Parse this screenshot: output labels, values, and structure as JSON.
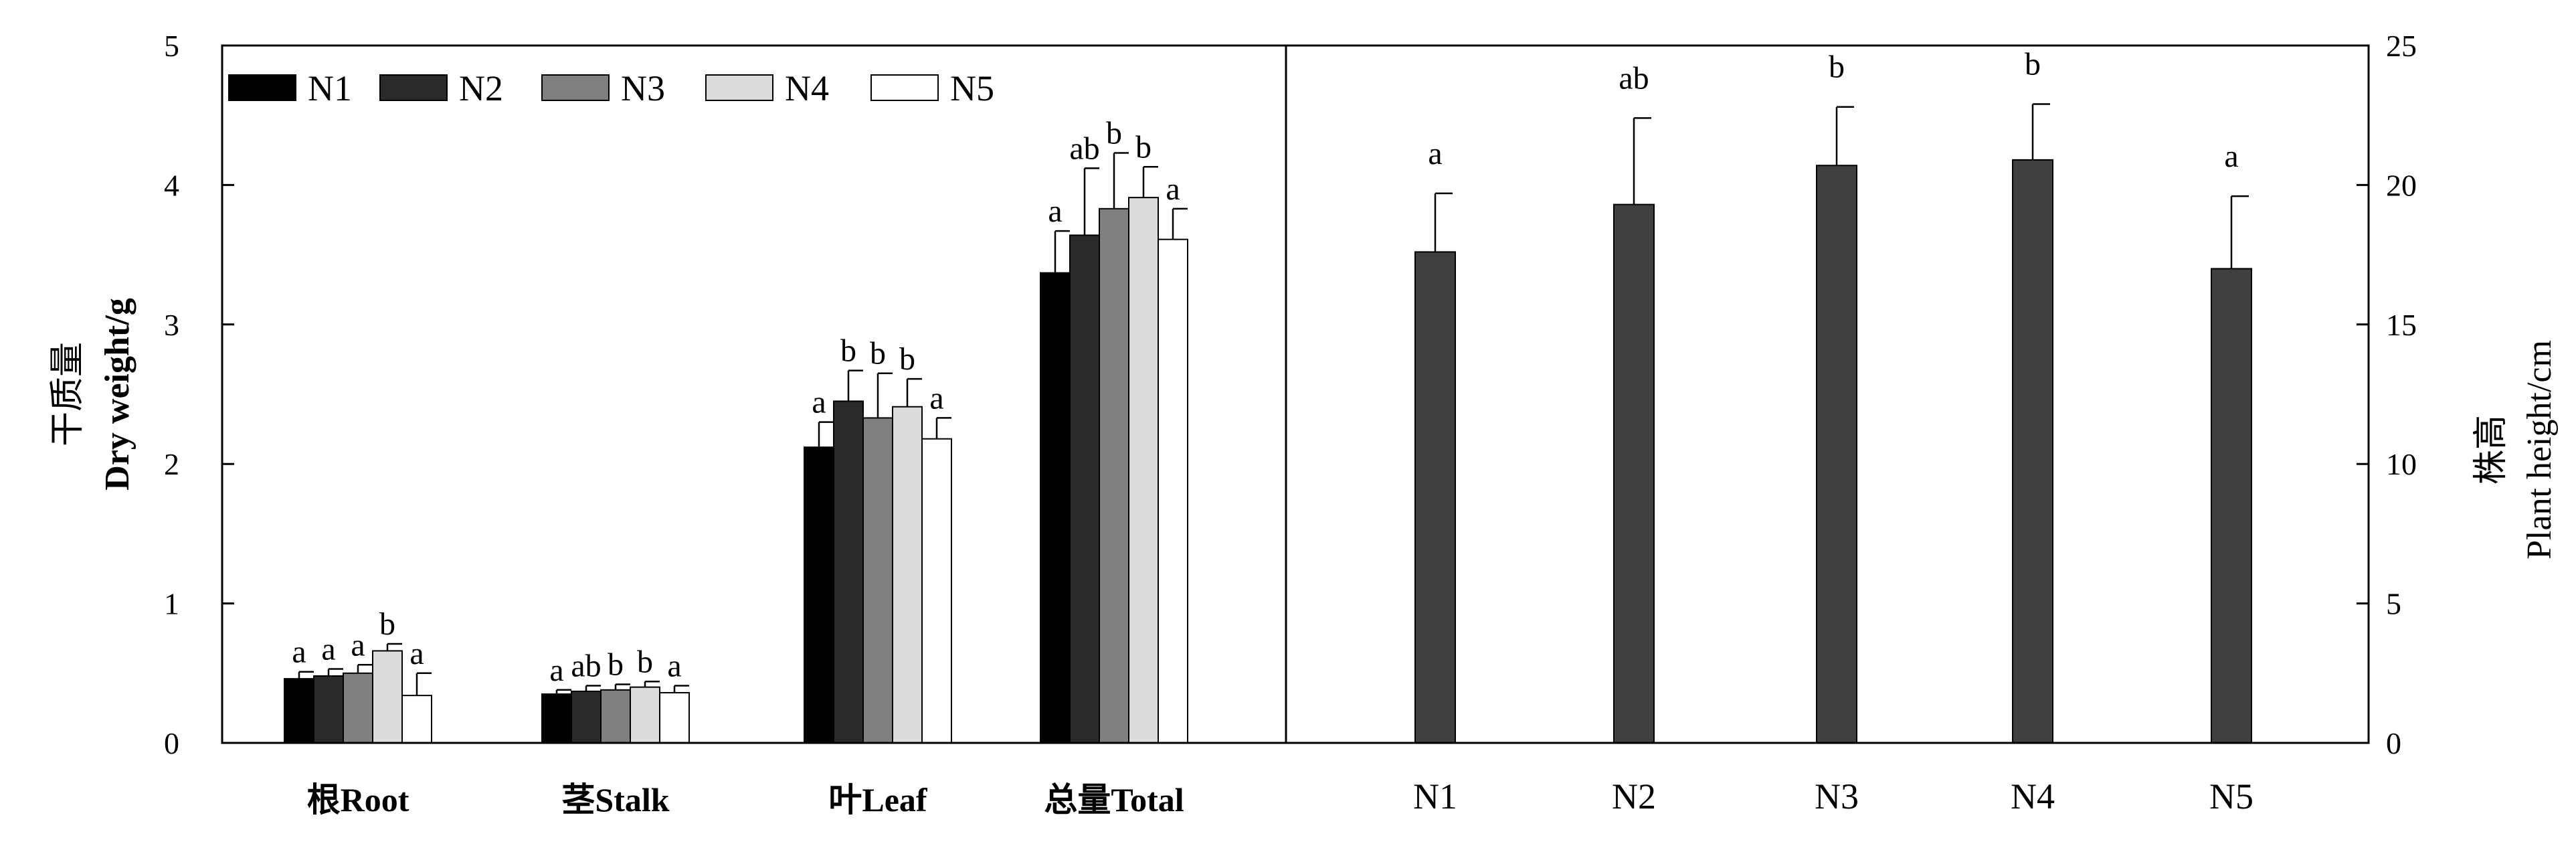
{
  "chart_data": [
    {
      "type": "bar",
      "categories": [
        "根Root",
        "茎Stalk",
        "叶Leaf",
        "总量Total"
      ],
      "ylabel_cn": "干质量",
      "ylabel_en": "Dry weight/g",
      "ylim": [
        0,
        5
      ],
      "yticks": [
        "0",
        "1",
        "2",
        "3",
        "4",
        "5"
      ],
      "legend_position": "top-left",
      "error_bars": true,
      "series": [
        {
          "name": "N1",
          "color": "#000000",
          "values": [
            0.46,
            0.35,
            2.12,
            3.37
          ],
          "errors": [
            0.05,
            0.03,
            0.18,
            0.3
          ],
          "labels": [
            "a",
            "a",
            "a",
            "a"
          ]
        },
        {
          "name": "N2",
          "color": "#2a2a2a",
          "values": [
            0.48,
            0.37,
            2.45,
            3.64
          ],
          "errors": [
            0.05,
            0.04,
            0.22,
            0.48
          ],
          "labels": [
            "a",
            "ab",
            "b",
            "ab"
          ]
        },
        {
          "name": "N3",
          "color": "#808080",
          "values": [
            0.5,
            0.38,
            2.33,
            3.83
          ],
          "errors": [
            0.06,
            0.04,
            0.32,
            0.4
          ],
          "labels": [
            "a",
            "b",
            "b",
            "b"
          ]
        },
        {
          "name": "N4",
          "color": "#dcdcdc",
          "values": [
            0.66,
            0.4,
            2.41,
            3.91
          ],
          "errors": [
            0.05,
            0.04,
            0.2,
            0.22
          ],
          "labels": [
            "b",
            "b",
            "b",
            "b"
          ]
        },
        {
          "name": "N5",
          "color": "#ffffff",
          "values": [
            0.34,
            0.36,
            2.18,
            3.61
          ],
          "errors": [
            0.16,
            0.05,
            0.15,
            0.22
          ],
          "labels": [
            "a",
            "a",
            "a",
            "a"
          ]
        }
      ]
    },
    {
      "type": "bar",
      "categories": [
        "N1",
        "N2",
        "N3",
        "N4",
        "N5"
      ],
      "values": [
        17.6,
        19.3,
        20.7,
        20.9,
        17.0
      ],
      "errors": [
        2.1,
        3.1,
        2.1,
        2.0,
        2.6
      ],
      "labels": [
        "a",
        "ab",
        "b",
        "b",
        "a"
      ],
      "color": "#404040",
      "ylabel_cn": "株高",
      "ylabel_en": "Plant height/cm",
      "ylim": [
        0,
        25
      ],
      "yticks": [
        "0",
        "5",
        "10",
        "15",
        "20",
        "25"
      ],
      "error_bars": true
    }
  ]
}
